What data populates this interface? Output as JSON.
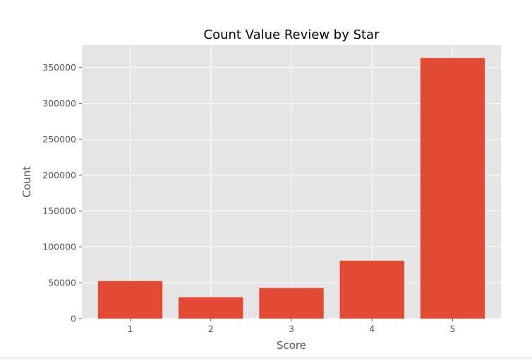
{
  "chart_data": {
    "type": "bar",
    "title": "Count Value Review by Star",
    "xlabel": "Score",
    "ylabel": "Count",
    "categories": [
      "1",
      "2",
      "3",
      "4",
      "5"
    ],
    "values": [
      52268,
      29769,
      42640,
      80655,
      363122
    ],
    "ylim": [
      0,
      381000
    ],
    "yticks": [
      0,
      50000,
      100000,
      150000,
      200000,
      250000,
      300000,
      350000
    ],
    "ytick_labels": [
      "0",
      "50000",
      "100000",
      "150000",
      "200000",
      "250000",
      "300000",
      "350000"
    ],
    "grid": true,
    "legend": "none",
    "colors": {
      "bar": "#E24A33",
      "plot_background": "#E5E5E5",
      "grid": "#FFFFFF"
    }
  }
}
